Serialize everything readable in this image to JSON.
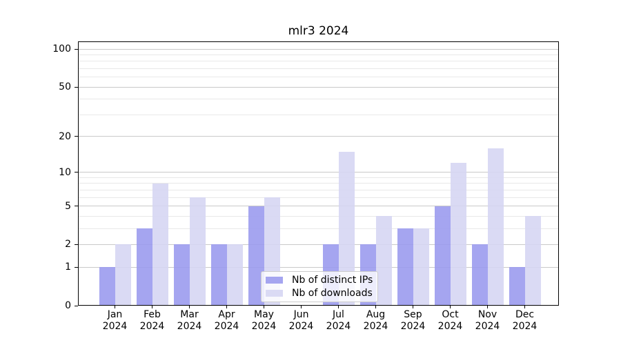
{
  "title": "mlr3 2024",
  "chart_data": {
    "type": "bar",
    "title": "mlr3 2024",
    "categories": [
      "Jan",
      "Feb",
      "Mar",
      "Apr",
      "May",
      "Jun",
      "Jul",
      "Aug",
      "Sep",
      "Oct",
      "Nov",
      "Dec"
    ],
    "x_tick_second_line": "2024",
    "series": [
      {
        "name": "Nb of distinct IPs",
        "color": "#9999ee",
        "values": [
          1,
          3,
          2,
          2,
          5,
          0,
          2,
          2,
          3,
          5,
          2,
          1
        ]
      },
      {
        "name": "Nb of downloads",
        "color": "#d5d5f2",
        "values": [
          2,
          8,
          6,
          2,
          6,
          0,
          15,
          4,
          3,
          12,
          16,
          4
        ]
      }
    ],
    "bar_alpha": 0.88,
    "yscale": "log1p",
    "ylim": [
      0,
      115
    ],
    "yticks": [
      0,
      1,
      2,
      5,
      10,
      20,
      50,
      100
    ],
    "minor_yticks": [
      3,
      4,
      6,
      7,
      8,
      9,
      30,
      40,
      60,
      70,
      80,
      90
    ],
    "grid": "both",
    "major_grid_color": "#c9c9c9",
    "minor_grid_color": "#e8e8e8",
    "legend_position": "lower center"
  }
}
